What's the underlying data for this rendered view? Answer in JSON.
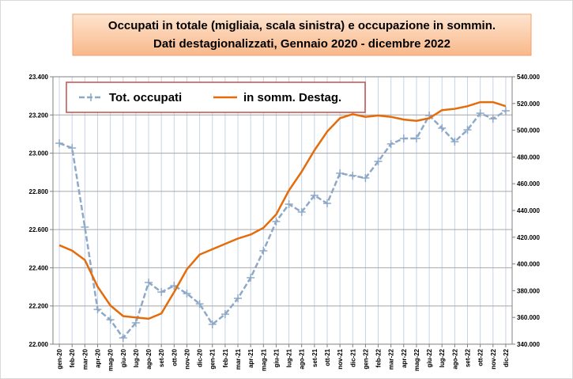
{
  "chart_data": {
    "type": "line",
    "title": [
      "Occupati in  totale (migliaia, scala sinistra)  e occupazione in sommin.",
      "Dati destagionalizzati, Gennaio 2020 - dicembre 2022"
    ],
    "categories": [
      "gen-20",
      "feb-20",
      "mar-20",
      "apr-20",
      "mag-20",
      "giu-20",
      "lug-20",
      "ago-20",
      "set-20",
      "ott-20",
      "nov-20",
      "dic-20",
      "gen-21",
      "feb-21",
      "mar-21",
      "apr-21",
      "mag-21",
      "giu-21",
      "lug-21",
      "ago-21",
      "set-21",
      "ott-21",
      "nov-21",
      "dic-21",
      "gen-22",
      "feb-22",
      "mar-22",
      "apr-22",
      "mag-22",
      "giu-22",
      "lug-22",
      "ago-22",
      "set-22",
      "ott-22",
      "nov-22",
      "dic-22"
    ],
    "series": [
      {
        "name": "Tot. occupati",
        "color": "#8ea9c8",
        "axis": "y",
        "values": [
          23052,
          23027,
          22613,
          22182,
          22128,
          22033,
          22112,
          22323,
          22273,
          22306,
          22265,
          22211,
          22104,
          22157,
          22240,
          22348,
          22489,
          22642,
          22733,
          22692,
          22779,
          22737,
          22895,
          22882,
          22870,
          22957,
          23048,
          23077,
          23077,
          23197,
          23131,
          23060,
          23122,
          23209,
          23180,
          23222
        ]
      },
      {
        "name": "in somm. Destag.",
        "color": "#e46c0a",
        "axis": "y2",
        "values": [
          414000,
          410000,
          403000,
          383000,
          369000,
          361000,
          360000,
          359000,
          363000,
          379000,
          396000,
          407000,
          411000,
          415000,
          419000,
          422000,
          427000,
          437000,
          455000,
          469000,
          485000,
          499000,
          509000,
          512000,
          510000,
          511000,
          510000,
          508000,
          507000,
          509000,
          515000,
          516000,
          518000,
          521000,
          521000,
          518000
        ]
      }
    ],
    "ylim": [
      22000,
      23400
    ],
    "yticks": [
      {
        "value": 22000,
        "label": "22.000"
      },
      {
        "value": 22200,
        "label": "22.200"
      },
      {
        "value": 22400,
        "label": "22.400"
      },
      {
        "value": 22600,
        "label": "22.600"
      },
      {
        "value": 22800,
        "label": "22.800"
      },
      {
        "value": 23000,
        "label": "23.000"
      },
      {
        "value": 23200,
        "label": "23.200"
      },
      {
        "value": 23400,
        "label": "23.400"
      }
    ],
    "y2lim": [
      340000,
      540000
    ],
    "y2ticks": [
      {
        "value": 340000,
        "label": "340.000"
      },
      {
        "value": 360000,
        "label": "360.000"
      },
      {
        "value": 380000,
        "label": "380.000"
      },
      {
        "value": 400000,
        "label": "400.000"
      },
      {
        "value": 420000,
        "label": "420.000"
      },
      {
        "value": 440000,
        "label": "440.000"
      },
      {
        "value": 460000,
        "label": "460.000"
      },
      {
        "value": 480000,
        "label": "480.000"
      },
      {
        "value": 500000,
        "label": "500.000"
      },
      {
        "value": 520000,
        "label": "520.000"
      },
      {
        "value": 540000,
        "label": "540.000"
      }
    ],
    "grid": true
  }
}
